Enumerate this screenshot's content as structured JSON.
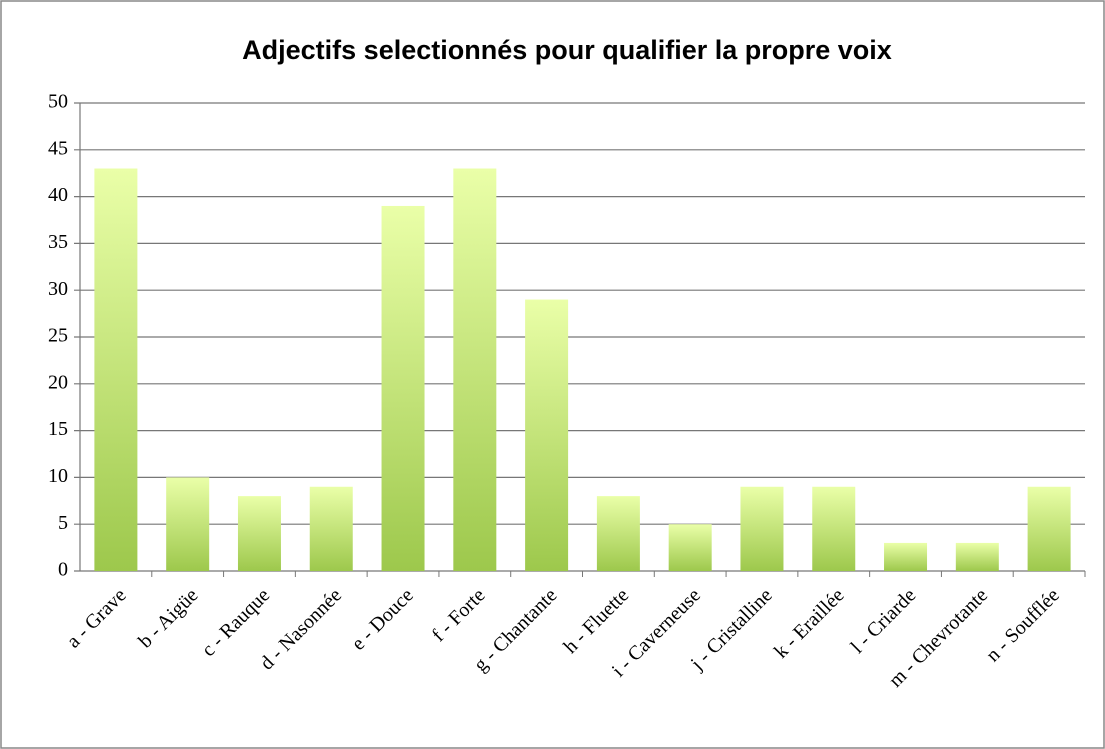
{
  "chart_data": {
    "type": "bar",
    "title": "Adjectifs selectionnés pour qualifier la propre voix",
    "categories": [
      "a - Grave",
      "b - Aigüe",
      "c - Rauque",
      "d - Nasonnée",
      "e - Douce",
      "f - Forte",
      "g - Chantante",
      "h - Fluette",
      "i - Caverneuse",
      "j - Cristalline",
      "k - Eraillée",
      "l - Criarde",
      "m - Chevrotante",
      "n - Soufflée"
    ],
    "values": [
      43,
      10,
      8,
      9,
      39,
      43,
      29,
      8,
      5,
      9,
      9,
      3,
      3,
      9
    ],
    "color": "#9dc84c",
    "ylim": [
      0,
      50
    ],
    "yticks": [
      0,
      5,
      10,
      15,
      20,
      25,
      30,
      35,
      40,
      45,
      50
    ],
    "grid": true
  }
}
